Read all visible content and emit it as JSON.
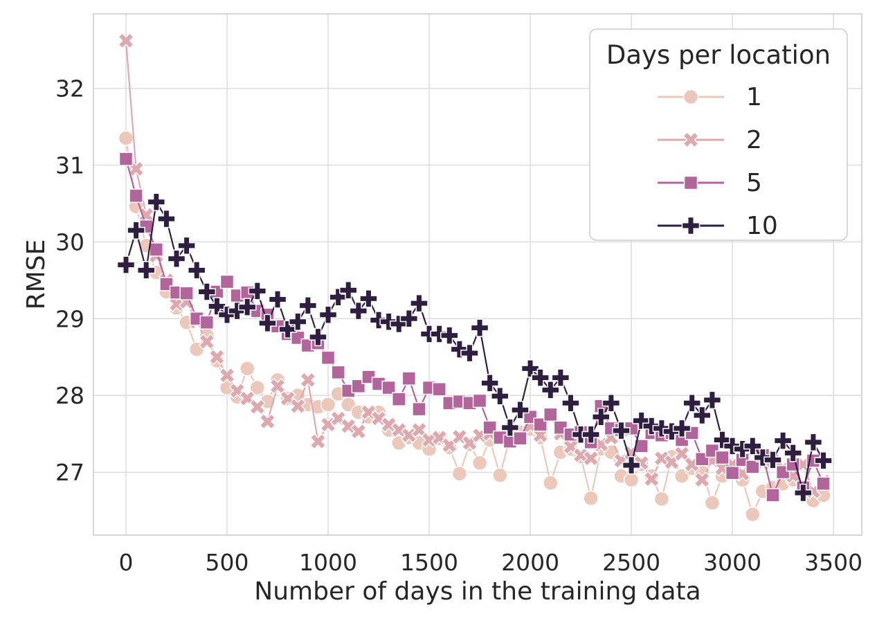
{
  "chart_data": {
    "type": "line",
    "title": "",
    "xlabel": "Number of days in the training data",
    "ylabel": "RMSE",
    "grid": true,
    "legend": {
      "title": "Days per location",
      "position": "upper right",
      "entries": [
        "1",
        "2",
        "5",
        "10"
      ]
    },
    "xlim": [
      -161,
      3640
    ],
    "ylim": [
      26.18,
      32.97
    ],
    "xticks": [
      0,
      500,
      1000,
      1500,
      2000,
      2500,
      3000,
      3500
    ],
    "yticks": [
      27,
      28,
      29,
      30,
      31,
      32
    ],
    "x": [
      0,
      50,
      100,
      150,
      200,
      250,
      300,
      350,
      400,
      450,
      500,
      550,
      600,
      650,
      700,
      750,
      800,
      850,
      900,
      950,
      1000,
      1050,
      1100,
      1150,
      1200,
      1250,
      1300,
      1350,
      1400,
      1450,
      1500,
      1550,
      1600,
      1650,
      1700,
      1750,
      1800,
      1850,
      1900,
      1950,
      2000,
      2050,
      2100,
      2150,
      2200,
      2250,
      2300,
      2350,
      2400,
      2450,
      2500,
      2550,
      2600,
      2650,
      2700,
      2750,
      2800,
      2850,
      2900,
      2950,
      3000,
      3050,
      3100,
      3150,
      3200,
      3250,
      3300,
      3350,
      3400,
      3450
    ],
    "series": [
      {
        "name": "1",
        "marker": "circle",
        "color": "#ebc8ba",
        "values": [
          31.35,
          30.46,
          29.95,
          29.6,
          29.35,
          29.14,
          28.95,
          28.6,
          28.78,
          28.45,
          28.1,
          27.98,
          28.35,
          28.1,
          27.92,
          28.2,
          27.96,
          28.0,
          27.88,
          27.85,
          27.88,
          28.02,
          27.88,
          27.78,
          27.72,
          27.78,
          27.55,
          27.38,
          27.45,
          27.38,
          27.3,
          27.44,
          27.32,
          26.98,
          27.36,
          27.12,
          27.42,
          26.96,
          27.45,
          27.52,
          27.56,
          27.45,
          26.86,
          27.26,
          27.3,
          27.2,
          26.66,
          27.3,
          27.26,
          26.95,
          26.9,
          27.1,
          26.95,
          26.65,
          27.2,
          26.95,
          27.05,
          27.0,
          26.6,
          26.95,
          27.0,
          26.9,
          26.45,
          26.75,
          26.8,
          26.85,
          26.9,
          26.75,
          26.63,
          26.7
        ]
      },
      {
        "name": "2",
        "marker": "x",
        "color": "#dea9ae",
        "values": [
          32.62,
          30.95,
          30.35,
          29.82,
          29.5,
          29.19,
          29.22,
          28.96,
          28.7,
          28.5,
          28.26,
          28.06,
          27.96,
          27.85,
          27.66,
          28.12,
          27.96,
          27.86,
          28.2,
          27.4,
          27.62,
          27.7,
          27.6,
          27.53,
          27.78,
          27.7,
          27.62,
          27.55,
          27.48,
          27.55,
          27.42,
          27.45,
          27.35,
          27.46,
          27.38,
          27.48,
          27.5,
          27.46,
          27.55,
          27.46,
          27.6,
          27.48,
          27.72,
          27.5,
          27.33,
          27.22,
          27.18,
          27.36,
          27.45,
          27.15,
          27.25,
          27.12,
          26.91,
          27.18,
          27.13,
          27.24,
          27.1,
          26.9,
          27.15,
          27.05,
          27.1,
          26.98,
          27.08,
          27.12,
          27.15,
          27.05,
          26.95,
          27.1,
          26.75,
          26.88
        ]
      },
      {
        "name": "5",
        "marker": "square",
        "color": "#b1659b",
        "values": [
          31.08,
          30.6,
          30.2,
          29.9,
          29.45,
          29.34,
          29.33,
          29.0,
          28.95,
          29.35,
          29.48,
          29.3,
          29.34,
          29.1,
          29.05,
          28.9,
          28.8,
          28.75,
          28.65,
          28.68,
          28.49,
          28.3,
          28.06,
          28.12,
          28.24,
          28.15,
          28.1,
          27.95,
          28.22,
          27.82,
          28.1,
          28.08,
          27.9,
          27.92,
          27.9,
          27.93,
          27.58,
          27.45,
          27.4,
          27.44,
          27.72,
          27.62,
          27.75,
          27.58,
          27.49,
          27.52,
          27.39,
          27.86,
          27.57,
          27.55,
          27.57,
          27.34,
          27.51,
          27.48,
          27.51,
          27.42,
          27.51,
          27.17,
          27.28,
          27.19,
          26.99,
          27.16,
          27.07,
          27.22,
          26.7,
          27.0,
          27.1,
          26.8,
          27.15,
          26.85
        ]
      },
      {
        "name": "10",
        "marker": "plus",
        "color": "#2e1f40",
        "values": [
          29.7,
          30.15,
          29.63,
          30.52,
          30.3,
          29.78,
          29.95,
          29.63,
          29.35,
          29.16,
          29.05,
          29.1,
          29.15,
          29.36,
          28.94,
          29.25,
          28.86,
          28.96,
          29.17,
          28.76,
          29.05,
          29.28,
          29.37,
          29.1,
          29.26,
          28.98,
          28.96,
          28.93,
          29.0,
          29.2,
          28.8,
          28.8,
          28.78,
          28.6,
          28.55,
          28.88,
          28.16,
          27.99,
          27.58,
          27.81,
          28.35,
          28.23,
          28.07,
          28.23,
          27.9,
          27.49,
          27.49,
          27.72,
          27.9,
          27.54,
          27.09,
          27.67,
          27.6,
          27.57,
          27.53,
          27.57,
          27.9,
          27.74,
          27.94,
          27.42,
          27.34,
          27.3,
          27.34,
          27.19,
          27.16,
          27.41,
          27.25,
          26.73,
          27.39,
          27.15
        ]
      }
    ],
    "colors": {
      "background": "#ffffff",
      "grid": "#dcdcdc",
      "border": "#c9c9c9",
      "text": "#262626",
      "legend_border": "#cccccc"
    }
  }
}
